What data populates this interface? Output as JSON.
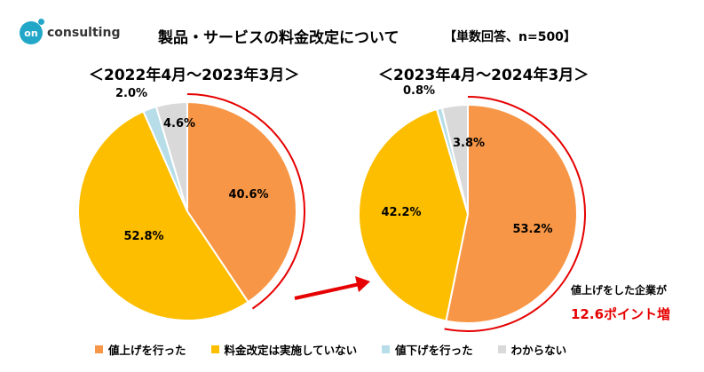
{
  "header": {
    "logo_text": "consulting",
    "logo_mark": "on",
    "title": "製品・サービスの料金改定について",
    "subtitle": "【単数回答、n=500】"
  },
  "colors": {
    "raise": "#f79646",
    "change": "#fdbe00",
    "lower": "#b7dee8",
    "unknown": "#d9d9d9",
    "accent_red": "#e60000",
    "logo": "#22a7c9"
  },
  "chart_data": [
    {
      "type": "pie",
      "title": "＜2022年4月～2023年3月＞",
      "categories": [
        "値上げを行った",
        "料金改定は実施していない",
        "値下げを行った",
        "わからない"
      ],
      "values": [
        40.6,
        52.8,
        2.0,
        4.6
      ],
      "labels": [
        "40.6%",
        "52.8%",
        "2.0%",
        "4.6%"
      ],
      "highlight_arc": "値上げを行った"
    },
    {
      "type": "pie",
      "title": "＜2023年4月～2024年3月＞",
      "categories": [
        "値上げを行った",
        "料金改定は実施していない",
        "値下げを行った",
        "わからない"
      ],
      "values": [
        53.2,
        42.2,
        0.8,
        3.8
      ],
      "labels": [
        "53.2%",
        "42.2%",
        "0.8%",
        "3.8%"
      ],
      "highlight_arc": "値上げを行った"
    }
  ],
  "annotation": {
    "line1": "値上げをした企業が",
    "line2": "12.6ポイント増"
  },
  "legend": [
    {
      "label": "値上げを行った",
      "color": "#f79646"
    },
    {
      "label": "料金改定は実施していない",
      "color": "#fdbe00"
    },
    {
      "label": "値下げを行った",
      "color": "#b7dee8"
    },
    {
      "label": "わからない",
      "color": "#d9d9d9"
    }
  ]
}
